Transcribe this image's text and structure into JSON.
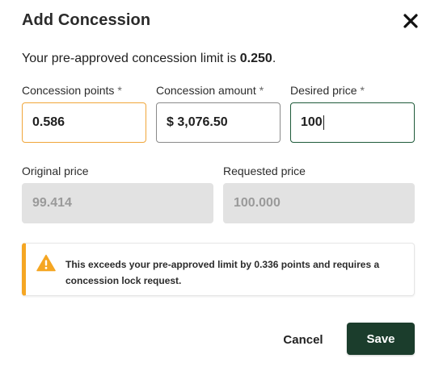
{
  "dialog": {
    "title": "Add Concession",
    "close_icon": "close-icon"
  },
  "limit": {
    "prefix": "Your pre-approved concession limit is ",
    "value": "0.250",
    "suffix": "."
  },
  "fields": {
    "concession_points": {
      "label": "Concession points",
      "required": "*",
      "value": "0.586"
    },
    "concession_amount": {
      "label": "Concession amount",
      "required": "*",
      "value": "$ 3,076.50"
    },
    "desired_price": {
      "label": "Desired price",
      "required": "*",
      "value": "100"
    },
    "original_price": {
      "label": "Original price",
      "value": "99.414"
    },
    "requested_price": {
      "label": "Requested price",
      "value": "100.000"
    }
  },
  "alert": {
    "icon": "warning-icon",
    "part1": "This exceeds your pre-approved limit by ",
    "amount": "0.336",
    "part2": " points and requires a concession lock request.",
    "accent_color": "#f5a623"
  },
  "actions": {
    "cancel_label": "Cancel",
    "save_label": "Save",
    "save_color": "#1b3d2c"
  }
}
